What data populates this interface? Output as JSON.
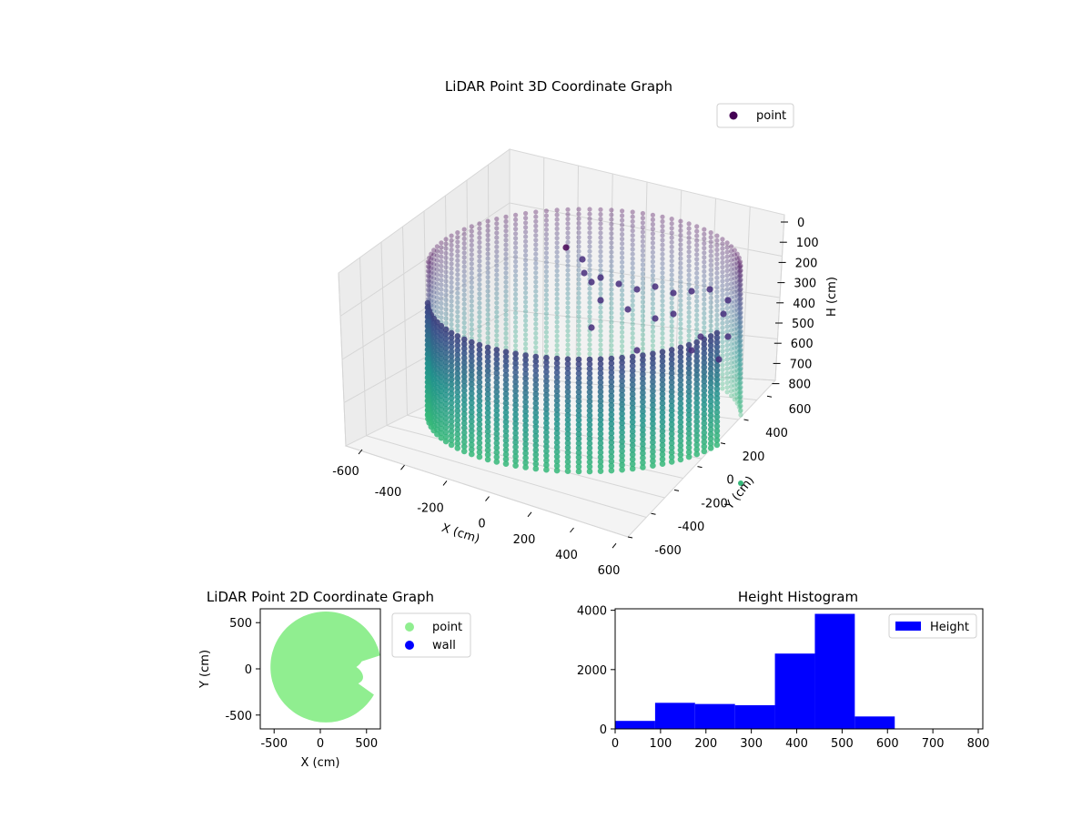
{
  "chart_data": [
    {
      "type": "scatter",
      "title": "LiDAR Point 3D Coordinate Graph",
      "xlabel": "X (cm)",
      "ylabel": "Y (cm)",
      "zlabel": "H (cm)",
      "xlim": [
        -650,
        650
      ],
      "ylim": [
        -650,
        650
      ],
      "zlim": [
        800,
        0
      ],
      "x_ticks": [
        -600,
        -400,
        -200,
        0,
        200,
        400,
        600
      ],
      "y_ticks": [
        -600,
        -400,
        -200,
        0,
        200,
        400,
        600
      ],
      "z_ticks": [
        0,
        100,
        200,
        300,
        400,
        500,
        600,
        700,
        800
      ],
      "grid": true,
      "legend": {
        "placement": "top-right",
        "entries": [
          "point"
        ]
      },
      "series": [
        {
          "name": "point",
          "shape": "cylindrical wall of points",
          "radius_cm": 600,
          "height_range_cm": [
            0,
            800
          ],
          "colormap": "viridis"
        }
      ],
      "colors": {
        "top": "#440154",
        "mid": "#31688e",
        "bottom": "#35b779"
      }
    },
    {
      "type": "scatter",
      "title": "LiDAR Point 2D Coordinate Graph",
      "xlabel": "X (cm)",
      "ylabel": "Y (cm)",
      "xlim": [
        -650,
        650
      ],
      "ylim": [
        -650,
        650
      ],
      "x_ticks": [
        -500,
        0,
        500
      ],
      "y_ticks": [
        -500,
        0,
        500
      ],
      "legend": {
        "placement": "outside-right",
        "entries": [
          "point",
          "wall"
        ]
      },
      "series": [
        {
          "name": "point",
          "color": "#90ee90",
          "shape": "filled disk",
          "radius_cm": 600
        },
        {
          "name": "wall",
          "color": "#0000ff"
        }
      ]
    },
    {
      "type": "bar",
      "title": "Height Histogram",
      "xlabel": "",
      "ylabel": "",
      "xlim": [
        0,
        810
      ],
      "ylim": [
        0,
        4050
      ],
      "x_ticks": [
        0,
        100,
        200,
        300,
        400,
        500,
        600,
        700,
        800
      ],
      "y_ticks": [
        0,
        2000,
        4000
      ],
      "legend": {
        "placement": "top-right",
        "entries": [
          "Height"
        ]
      },
      "bin_edges": [
        0,
        88,
        176,
        264,
        352,
        440,
        528,
        616,
        704,
        792
      ],
      "values": [
        270,
        880,
        840,
        800,
        2540,
        3880,
        420,
        0,
        0
      ],
      "series": [
        {
          "name": "Height",
          "color": "#0000ff"
        }
      ]
    }
  ]
}
